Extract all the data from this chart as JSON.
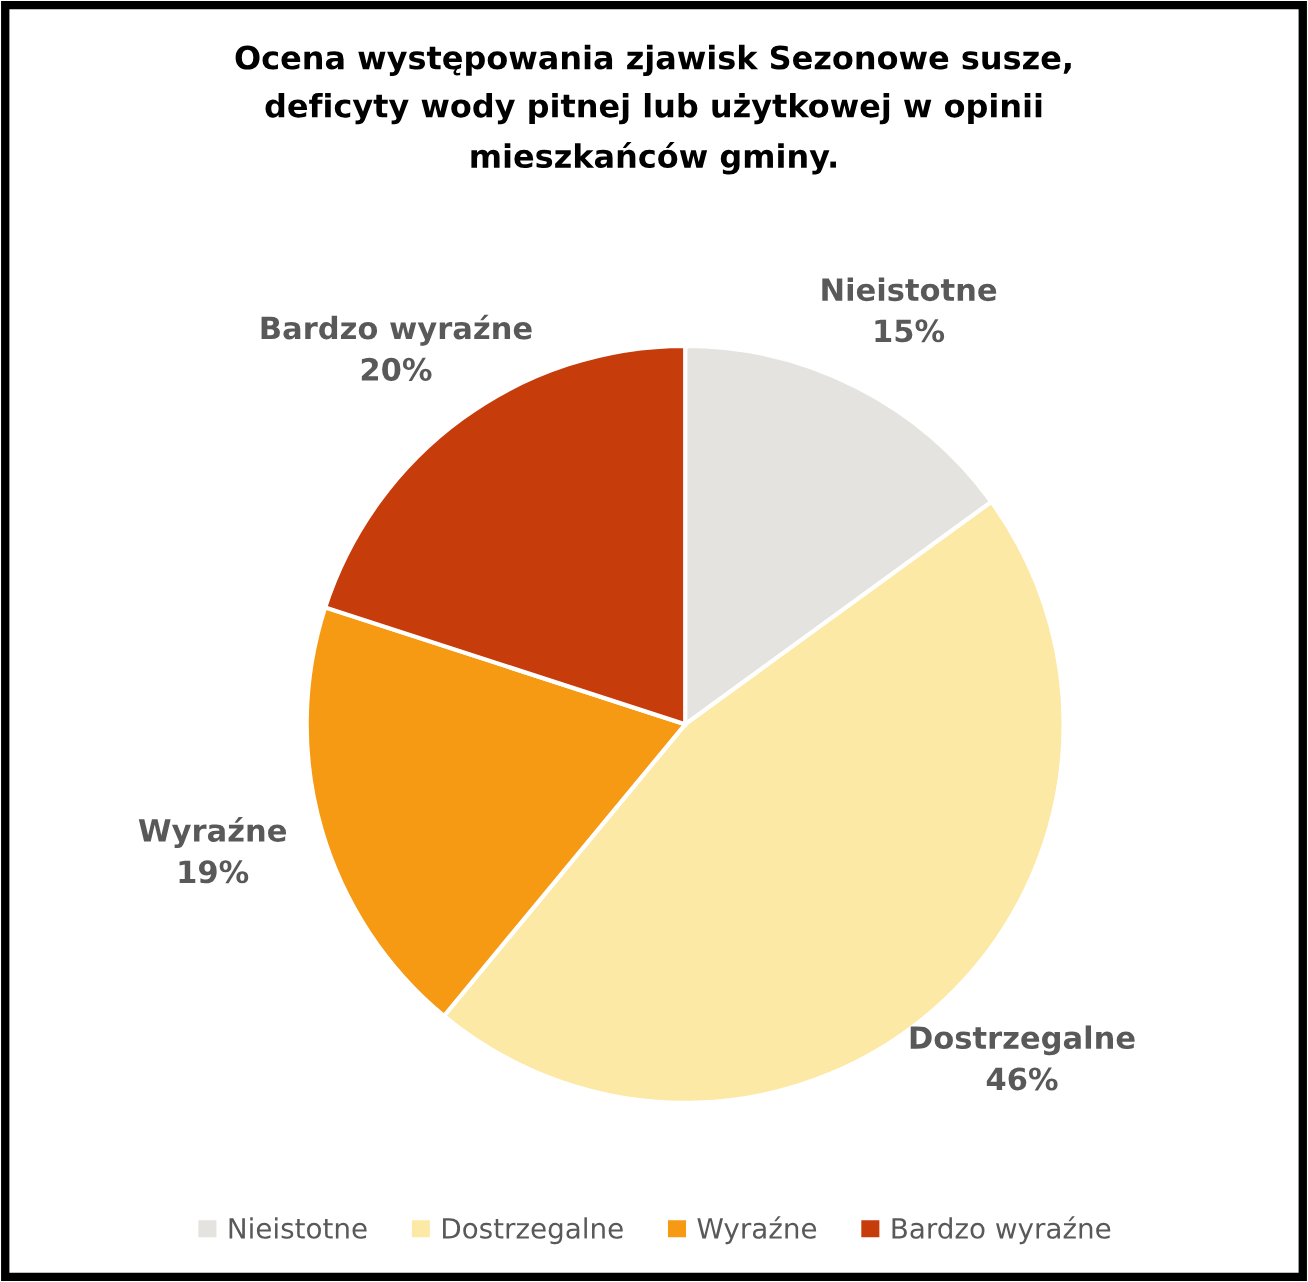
{
  "chart_data": {
    "type": "pie",
    "title": "Ocena występowania zjawisk Sezonowe susze,\ndeficyty wody pitnej lub użytkowej w opinii\nmieszkańców gminy.",
    "categories": [
      "Nieistotne",
      "Dostrzegalne",
      "Wyraźne",
      "Bardzo wyraźne"
    ],
    "values": [
      15,
      46,
      19,
      20
    ],
    "value_labels": [
      "15%",
      "46%",
      "19%",
      "20%"
    ],
    "colors": [
      "#e4e3df",
      "#fde9a6",
      "#f59a12",
      "#c63c0a"
    ],
    "legend": "bottom"
  }
}
